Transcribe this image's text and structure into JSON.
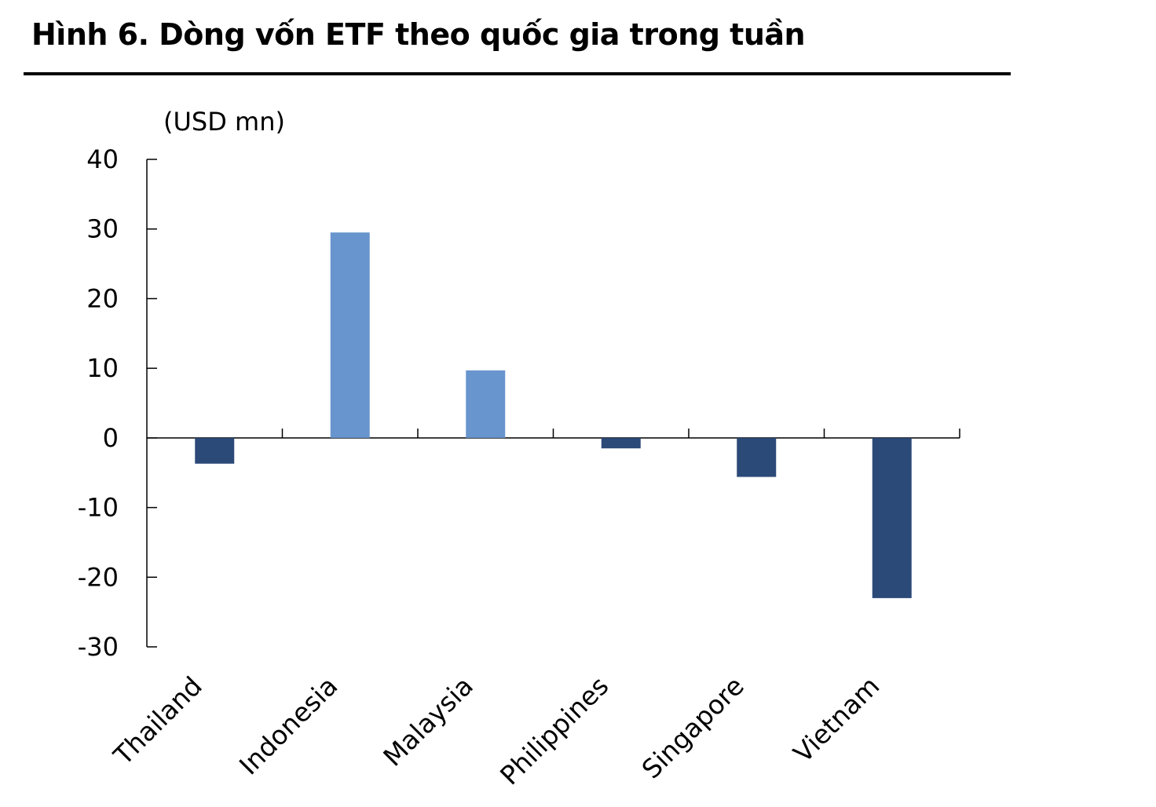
{
  "title": "Hình 6. Dòng vốn ETF theo quốc gia trong tuần",
  "colors": {
    "positive": "#6895CD",
    "negative": "#2C4A78",
    "axis": "#000000"
  },
  "chart_data": {
    "type": "bar",
    "title": "Hình 6. Dòng vốn ETF theo quốc gia trong tuần",
    "unit_label": "(USD mn)",
    "xlabel": "",
    "ylabel": "(USD mn)",
    "ylim": [
      -30,
      40
    ],
    "yticks": [
      40,
      30,
      20,
      10,
      0,
      -10,
      -20,
      -30
    ],
    "ytick_labels": [
      "40",
      "30",
      "20",
      "10",
      "0",
      "-10",
      "-20",
      "-30"
    ],
    "grid": false,
    "legend": "none",
    "categories": [
      "Thailand",
      "Indonesia",
      "Malaysia",
      "Philippines",
      "Singapore",
      "Vietnam"
    ],
    "values": [
      -3.7,
      29.5,
      9.7,
      -1.5,
      -5.6,
      -23.0
    ]
  }
}
